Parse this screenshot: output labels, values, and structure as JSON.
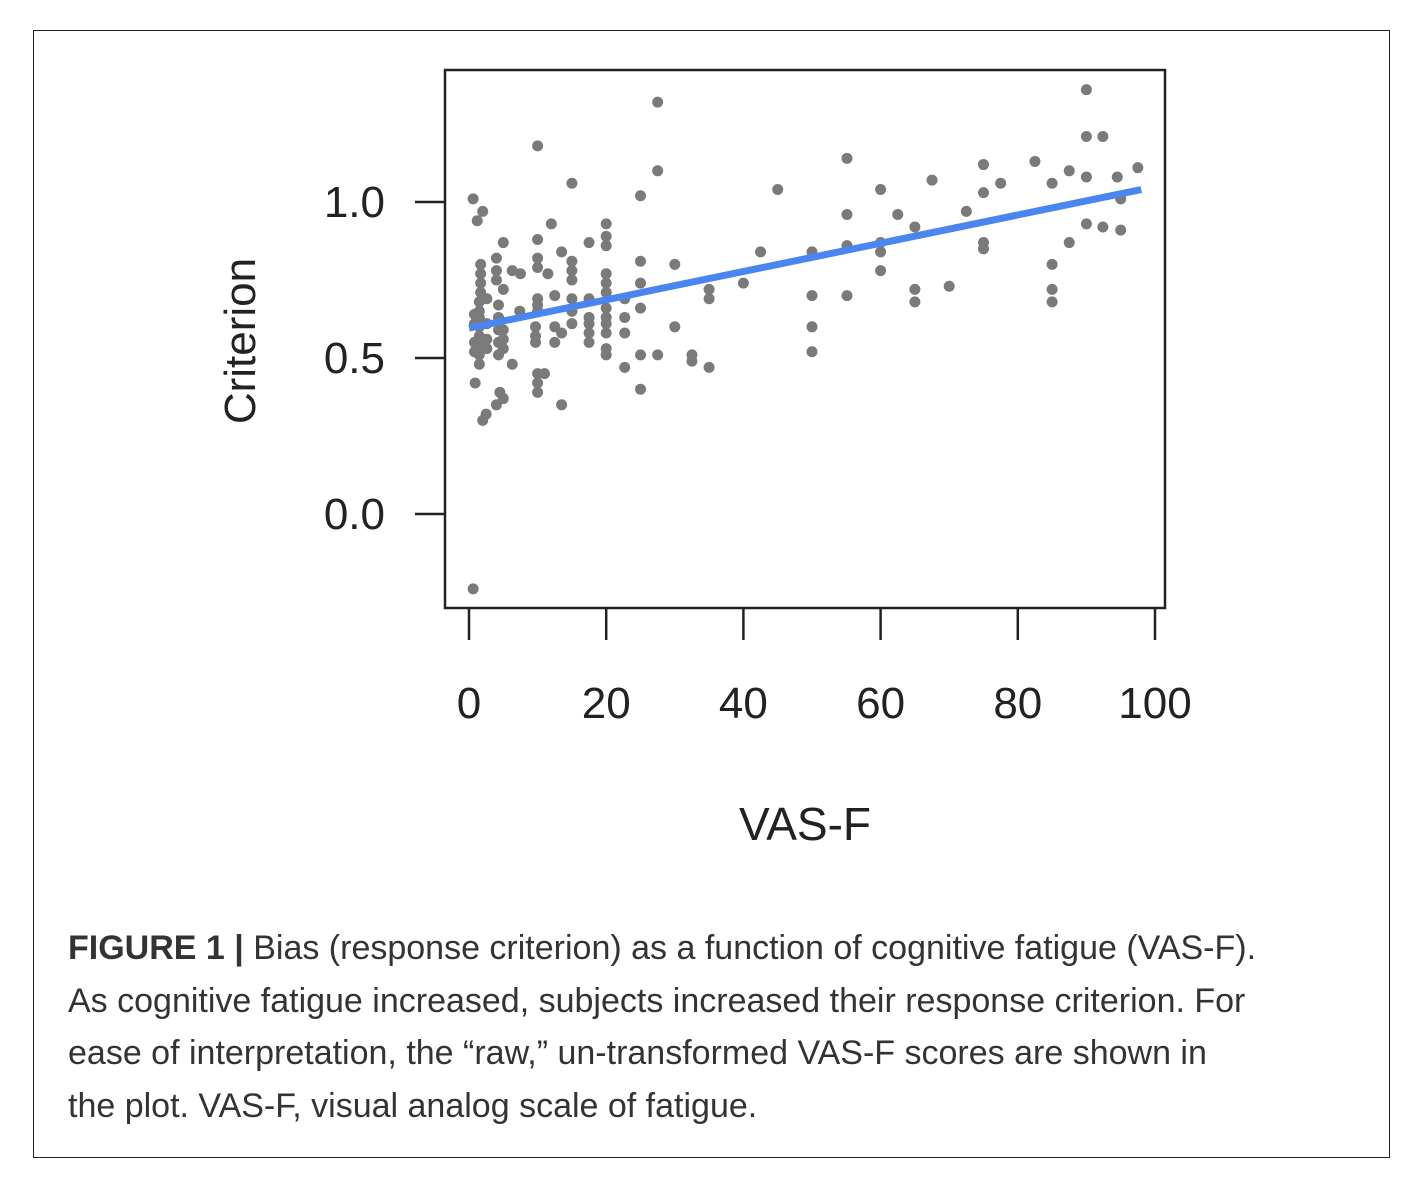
{
  "chart_data": {
    "type": "scatter",
    "title": "",
    "xlabel": "VAS-F",
    "ylabel": "Criterion",
    "xlim": [
      0,
      100
    ],
    "ylim": [
      -0.27,
      1.45
    ],
    "xticks": [
      0,
      20,
      40,
      60,
      80,
      100
    ],
    "xtick_labels": [
      "0",
      "20",
      "40",
      "60",
      "80",
      "100"
    ],
    "yticks": [
      0.0,
      0.5,
      1.0
    ],
    "ytick_labels": [
      "0.0",
      "0.5",
      "1.0"
    ],
    "grid": false,
    "point_color": "#7a7a7a",
    "line_color": "#4a86f0",
    "regression_line": {
      "x": [
        0,
        98
      ],
      "y": [
        0.596,
        1.04
      ]
    },
    "points": [
      [
        90,
        1.36
      ],
      [
        90,
        1.21
      ],
      [
        92.4,
        1.21
      ],
      [
        55.1,
        1.14
      ],
      [
        82.5,
        1.13
      ],
      [
        75,
        1.12
      ],
      [
        97.5,
        1.11
      ],
      [
        87.5,
        1.1
      ],
      [
        90,
        1.08
      ],
      [
        94.5,
        1.08
      ],
      [
        67.5,
        1.07
      ],
      [
        77.5,
        1.06
      ],
      [
        85,
        1.06
      ],
      [
        60,
        1.04
      ],
      [
        75,
        1.03
      ],
      [
        95,
        1.01
      ],
      [
        55.1,
        0.96
      ],
      [
        62.5,
        0.96
      ],
      [
        72.5,
        0.97
      ],
      [
        65,
        0.92
      ],
      [
        90,
        0.93
      ],
      [
        92.4,
        0.92
      ],
      [
        95,
        0.91
      ],
      [
        60,
        0.87
      ],
      [
        60,
        0.84
      ],
      [
        55.1,
        0.86
      ],
      [
        75,
        0.87
      ],
      [
        75,
        0.85
      ],
      [
        87.5,
        0.87
      ],
      [
        50,
        0.84
      ],
      [
        85,
        0.8
      ],
      [
        60,
        0.78
      ],
      [
        70,
        0.73
      ],
      [
        65,
        0.72
      ],
      [
        65,
        0.68
      ],
      [
        85,
        0.72
      ],
      [
        85,
        0.68
      ],
      [
        50,
        0.7
      ],
      [
        55.1,
        0.7
      ],
      [
        50,
        0.6
      ],
      [
        50,
        0.52
      ],
      [
        27.5,
        1.32
      ],
      [
        10,
        1.18
      ],
      [
        27.5,
        1.1
      ],
      [
        15,
        1.06
      ],
      [
        45,
        1.04
      ],
      [
        25,
        1.02
      ],
      [
        0.6,
        1.01
      ],
      [
        2,
        0.97
      ],
      [
        1.2,
        0.94
      ],
      [
        12,
        0.93
      ],
      [
        20,
        0.93
      ],
      [
        20,
        0.89
      ],
      [
        20,
        0.86
      ],
      [
        10,
        0.88
      ],
      [
        17.5,
        0.87
      ],
      [
        5,
        0.87
      ],
      [
        42.5,
        0.84
      ],
      [
        4,
        0.82
      ],
      [
        13.5,
        0.84
      ],
      [
        10,
        0.82
      ],
      [
        25,
        0.81
      ],
      [
        30,
        0.8
      ],
      [
        15,
        0.81
      ],
      [
        1.7,
        0.8
      ],
      [
        1.7,
        0.77
      ],
      [
        1.7,
        0.74
      ],
      [
        1.7,
        0.71
      ],
      [
        4,
        0.78
      ],
      [
        4,
        0.75
      ],
      [
        5,
        0.72
      ],
      [
        6.3,
        0.78
      ],
      [
        7.5,
        0.77
      ],
      [
        10,
        0.79
      ],
      [
        11.5,
        0.77
      ],
      [
        15,
        0.78
      ],
      [
        15,
        0.75
      ],
      [
        20,
        0.77
      ],
      [
        20,
        0.74
      ],
      [
        20,
        0.71
      ],
      [
        25,
        0.74
      ],
      [
        40,
        0.74
      ],
      [
        35,
        0.72
      ],
      [
        35,
        0.69
      ],
      [
        10,
        0.69
      ],
      [
        10,
        0.67
      ],
      [
        10,
        0.65
      ],
      [
        12.5,
        0.7
      ],
      [
        15,
        0.69
      ],
      [
        15,
        0.65
      ],
      [
        17.5,
        0.69
      ],
      [
        20,
        0.66
      ],
      [
        25,
        0.66
      ],
      [
        22.7,
        0.69
      ],
      [
        7.4,
        0.65
      ],
      [
        1.5,
        0.68
      ],
      [
        1.5,
        0.65
      ],
      [
        1.5,
        0.63
      ],
      [
        1.5,
        0.6
      ],
      [
        1.5,
        0.57
      ],
      [
        1.5,
        0.54
      ],
      [
        1.5,
        0.51
      ],
      [
        1.5,
        0.48
      ],
      [
        0.8,
        0.64
      ],
      [
        0.8,
        0.61
      ],
      [
        0.8,
        0.55
      ],
      [
        0.8,
        0.52
      ],
      [
        2.6,
        0.69
      ],
      [
        2.6,
        0.61
      ],
      [
        2.6,
        0.56
      ],
      [
        2.6,
        0.53
      ],
      [
        4.3,
        0.67
      ],
      [
        4.3,
        0.63
      ],
      [
        4.3,
        0.59
      ],
      [
        4.3,
        0.55
      ],
      [
        4.3,
        0.51
      ],
      [
        5,
        0.59
      ],
      [
        5,
        0.56
      ],
      [
        5,
        0.53
      ],
      [
        6.3,
        0.48
      ],
      [
        0.9,
        0.42
      ],
      [
        9.7,
        0.6
      ],
      [
        9.7,
        0.57
      ],
      [
        9.7,
        0.55
      ],
      [
        12.5,
        0.6
      ],
      [
        12.5,
        0.55
      ],
      [
        13.5,
        0.58
      ],
      [
        15,
        0.61
      ],
      [
        17.5,
        0.63
      ],
      [
        17.5,
        0.61
      ],
      [
        17.5,
        0.58
      ],
      [
        17.5,
        0.55
      ],
      [
        20,
        0.63
      ],
      [
        20,
        0.61
      ],
      [
        20,
        0.58
      ],
      [
        20,
        0.53
      ],
      [
        20,
        0.51
      ],
      [
        22.7,
        0.63
      ],
      [
        22.7,
        0.58
      ],
      [
        22.7,
        0.47
      ],
      [
        25,
        0.51
      ],
      [
        27.5,
        0.51
      ],
      [
        30,
        0.6
      ],
      [
        32.5,
        0.51
      ],
      [
        32.5,
        0.49
      ],
      [
        35,
        0.47
      ],
      [
        25,
        0.4
      ],
      [
        13.5,
        0.35
      ],
      [
        10,
        0.45
      ],
      [
        10,
        0.42
      ],
      [
        10,
        0.39
      ],
      [
        11,
        0.45
      ],
      [
        4.5,
        0.39
      ],
      [
        5,
        0.37
      ],
      [
        4,
        0.35
      ],
      [
        2.5,
        0.32
      ],
      [
        2,
        0.3
      ],
      [
        0.6,
        -0.24
      ]
    ]
  },
  "caption": {
    "label": "FIGURE 1 |",
    "lines": [
      " Bias (response criterion) as a function of cognitive fatigue (VAS-F).",
      "As cognitive fatigue increased, subjects increased their response criterion. For",
      "ease of interpretation, the “raw,” un-transformed VAS-F scores are shown in",
      "the plot. VAS-F, visual analog scale of fatigue."
    ]
  }
}
